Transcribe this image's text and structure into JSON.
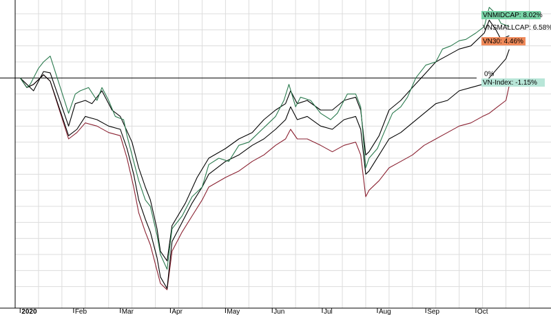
{
  "chart_data": {
    "type": "line",
    "title": "",
    "xlabel": "",
    "ylabel": "",
    "x_ticks": [
      {
        "label": "2020",
        "date": "2020-01-02",
        "bold": true
      },
      {
        "label": "Feb",
        "date": "2020-02-03"
      },
      {
        "label": "Mar",
        "date": "2020-03-02"
      },
      {
        "label": "Apr",
        "date": "2020-04-01"
      },
      {
        "label": "May",
        "date": "2020-05-04"
      },
      {
        "label": "Jun",
        "date": "2020-06-01"
      },
      {
        "label": "Jul",
        "date": "2020-07-01"
      },
      {
        "label": "Aug",
        "date": "2020-08-03"
      },
      {
        "label": "Sep",
        "date": "2020-09-01"
      },
      {
        "label": "Oct",
        "date": "2020-10-01"
      }
    ],
    "xlim": [
      "2019-12-30",
      "2020-11-15"
    ],
    "ylim": [
      -35,
      11.5
    ],
    "y_unit": "%",
    "grid": true,
    "zero_label": "0%",
    "series": [
      {
        "name": "VNMIDCAP",
        "last_value_label": "8.02%",
        "label_bg": "#78d2a6",
        "color": "#2a7a4e",
        "points": [
          [
            "2020-01-02",
            0
          ],
          [
            "2020-01-06",
            -1.5
          ],
          [
            "2020-01-08",
            -1
          ],
          [
            "2020-01-13",
            1.5
          ],
          [
            "2020-01-16",
            2.5
          ],
          [
            "2020-01-20",
            3.4
          ],
          [
            "2020-01-31",
            -5.5
          ],
          [
            "2020-02-04",
            -2.5
          ],
          [
            "2020-02-07",
            -2
          ],
          [
            "2020-02-12",
            -1.5
          ],
          [
            "2020-02-17",
            -3.5
          ],
          [
            "2020-02-20",
            -1.5
          ],
          [
            "2020-02-24",
            -3.5
          ],
          [
            "2020-02-28",
            -6
          ],
          [
            "2020-03-04",
            -6.5
          ],
          [
            "2020-03-06",
            -9
          ],
          [
            "2020-03-10",
            -13
          ],
          [
            "2020-03-13",
            -16
          ],
          [
            "2020-03-17",
            -19
          ],
          [
            "2020-03-20",
            -20
          ],
          [
            "2020-03-24",
            -24.5
          ],
          [
            "2020-03-26",
            -27.5
          ],
          [
            "2020-03-30",
            -29.8
          ],
          [
            "2020-04-02",
            -23.5
          ],
          [
            "2020-04-08",
            -21.5
          ],
          [
            "2020-04-14",
            -18.5
          ],
          [
            "2020-04-20",
            -17
          ],
          [
            "2020-04-24",
            -13.5
          ],
          [
            "2020-04-30",
            -12.5
          ],
          [
            "2020-05-06",
            -13
          ],
          [
            "2020-05-12",
            -10.5
          ],
          [
            "2020-05-18",
            -10
          ],
          [
            "2020-05-22",
            -9
          ],
          [
            "2020-05-28",
            -7.5
          ],
          [
            "2020-06-03",
            -6
          ],
          [
            "2020-06-08",
            -3.5
          ],
          [
            "2020-06-11",
            -1
          ],
          [
            "2020-06-15",
            -4.5
          ],
          [
            "2020-06-18",
            -3
          ],
          [
            "2020-06-24",
            -3.5
          ],
          [
            "2020-06-30",
            -5.5
          ],
          [
            "2020-07-06",
            -6.5
          ],
          [
            "2020-07-10",
            -5.5
          ],
          [
            "2020-07-16",
            -2.5
          ],
          [
            "2020-07-21",
            -2.5
          ],
          [
            "2020-07-24",
            -4.5
          ],
          [
            "2020-07-27",
            -14
          ],
          [
            "2020-07-29",
            -12.5
          ],
          [
            "2020-08-03",
            -11
          ],
          [
            "2020-08-07",
            -8.5
          ],
          [
            "2020-08-12",
            -5.5
          ],
          [
            "2020-08-17",
            -4.5
          ],
          [
            "2020-08-21",
            -3
          ],
          [
            "2020-08-26",
            0
          ],
          [
            "2020-09-01",
            2
          ],
          [
            "2020-09-07",
            2.5
          ],
          [
            "2020-09-11",
            4.5
          ],
          [
            "2020-09-16",
            5
          ],
          [
            "2020-09-21",
            5.8
          ],
          [
            "2020-09-25",
            6
          ],
          [
            "2020-10-01",
            7
          ],
          [
            "2020-10-06",
            8
          ],
          [
            "2020-10-09",
            11
          ],
          [
            "2020-10-13",
            10
          ],
          [
            "2020-10-16",
            8.5
          ],
          [
            "2020-10-21",
            8.02
          ]
        ]
      },
      {
        "name": "VNSMALLCAP",
        "last_value_label": "6.58%",
        "label_bg": "",
        "color": "#000000",
        "points": [
          [
            "2020-01-02",
            0
          ],
          [
            "2020-01-06",
            -1
          ],
          [
            "2020-01-10",
            -2
          ],
          [
            "2020-01-16",
            1
          ],
          [
            "2020-01-20",
            0.8
          ],
          [
            "2020-01-31",
            -7.5
          ],
          [
            "2020-02-04",
            -4
          ],
          [
            "2020-02-10",
            -3.5
          ],
          [
            "2020-02-14",
            -4
          ],
          [
            "2020-02-20",
            -2
          ],
          [
            "2020-02-26",
            -5
          ],
          [
            "2020-03-02",
            -6
          ],
          [
            "2020-03-09",
            -10
          ],
          [
            "2020-03-13",
            -14
          ],
          [
            "2020-03-17",
            -17
          ],
          [
            "2020-03-20",
            -19
          ],
          [
            "2020-03-24",
            -23.5
          ],
          [
            "2020-03-26",
            -27
          ],
          [
            "2020-03-30",
            -28.5
          ],
          [
            "2020-04-02",
            -23
          ],
          [
            "2020-04-10",
            -19.5
          ],
          [
            "2020-04-17",
            -15.5
          ],
          [
            "2020-04-24",
            -12.5
          ],
          [
            "2020-05-04",
            -11
          ],
          [
            "2020-05-12",
            -9.5
          ],
          [
            "2020-05-20",
            -8.5
          ],
          [
            "2020-05-27",
            -6.5
          ],
          [
            "2020-06-03",
            -5
          ],
          [
            "2020-06-09",
            -4
          ],
          [
            "2020-06-12",
            -2
          ],
          [
            "2020-06-16",
            -4
          ],
          [
            "2020-06-22",
            -3.5
          ],
          [
            "2020-06-30",
            -5
          ],
          [
            "2020-07-07",
            -5
          ],
          [
            "2020-07-14",
            -3.5
          ],
          [
            "2020-07-21",
            -3
          ],
          [
            "2020-07-24",
            -5
          ],
          [
            "2020-07-27",
            -12
          ],
          [
            "2020-07-29",
            -11.5
          ],
          [
            "2020-08-04",
            -9
          ],
          [
            "2020-08-10",
            -5
          ],
          [
            "2020-08-17",
            -3.5
          ],
          [
            "2020-08-24",
            -1.5
          ],
          [
            "2020-08-31",
            0.5
          ],
          [
            "2020-09-07",
            2.5
          ],
          [
            "2020-09-14",
            3.5
          ],
          [
            "2020-09-21",
            4.5
          ],
          [
            "2020-09-28",
            5
          ],
          [
            "2020-10-06",
            7
          ],
          [
            "2020-10-09",
            9
          ],
          [
            "2020-10-13",
            7.5
          ],
          [
            "2020-10-16",
            6
          ],
          [
            "2020-10-21",
            6.58
          ]
        ]
      },
      {
        "name": "VN30",
        "last_value_label": "4.46%",
        "label_bg": "#f08a5a",
        "color": "#000000",
        "points": [
          [
            "2020-01-02",
            0
          ],
          [
            "2020-01-06",
            -1.5
          ],
          [
            "2020-01-10",
            -1
          ],
          [
            "2020-01-16",
            0.5
          ],
          [
            "2020-01-20",
            -0.5
          ],
          [
            "2020-01-31",
            -9
          ],
          [
            "2020-02-05",
            -8
          ],
          [
            "2020-02-10",
            -6
          ],
          [
            "2020-02-17",
            -6.5
          ],
          [
            "2020-02-24",
            -7.5
          ],
          [
            "2020-03-02",
            -8
          ],
          [
            "2020-03-06",
            -11
          ],
          [
            "2020-03-10",
            -15
          ],
          [
            "2020-03-13",
            -19
          ],
          [
            "2020-03-17",
            -22
          ],
          [
            "2020-03-20",
            -24
          ],
          [
            "2020-03-24",
            -28
          ],
          [
            "2020-03-26",
            -31
          ],
          [
            "2020-03-30",
            -32.8
          ],
          [
            "2020-04-02",
            -25.5
          ],
          [
            "2020-04-08",
            -22.5
          ],
          [
            "2020-04-14",
            -19.5
          ],
          [
            "2020-04-20",
            -17
          ],
          [
            "2020-04-24",
            -15
          ],
          [
            "2020-05-04",
            -13
          ],
          [
            "2020-05-12",
            -12
          ],
          [
            "2020-05-20",
            -10.5
          ],
          [
            "2020-05-27",
            -9.5
          ],
          [
            "2020-06-03",
            -8
          ],
          [
            "2020-06-09",
            -6.5
          ],
          [
            "2020-06-12",
            -4.5
          ],
          [
            "2020-06-16",
            -6.5
          ],
          [
            "2020-06-22",
            -6
          ],
          [
            "2020-06-30",
            -7.5
          ],
          [
            "2020-07-07",
            -8
          ],
          [
            "2020-07-14",
            -6.5
          ],
          [
            "2020-07-21",
            -6
          ],
          [
            "2020-07-24",
            -8
          ],
          [
            "2020-07-27",
            -15
          ],
          [
            "2020-07-29",
            -14.5
          ],
          [
            "2020-08-04",
            -12
          ],
          [
            "2020-08-10",
            -9.5
          ],
          [
            "2020-08-17",
            -8.5
          ],
          [
            "2020-08-24",
            -7
          ],
          [
            "2020-08-31",
            -5.5
          ],
          [
            "2020-09-07",
            -4
          ],
          [
            "2020-09-14",
            -3.5
          ],
          [
            "2020-09-21",
            -2
          ],
          [
            "2020-09-28",
            -1.5
          ],
          [
            "2020-10-05",
            -1
          ],
          [
            "2020-10-09",
            0
          ],
          [
            "2020-10-14",
            1.5
          ],
          [
            "2020-10-19",
            3
          ],
          [
            "2020-10-21",
            4.46
          ]
        ]
      },
      {
        "name": "VN-Index",
        "last_value_label": "-1.15%",
        "label_bg": "#b8e6d8",
        "color": "#8a2030",
        "points": [
          [
            "2020-01-02",
            0
          ],
          [
            "2020-01-06",
            -1.5
          ],
          [
            "2020-01-10",
            -1
          ],
          [
            "2020-01-16",
            0.5
          ],
          [
            "2020-01-20",
            -0.5
          ],
          [
            "2020-01-31",
            -9.5
          ],
          [
            "2020-02-05",
            -8.5
          ],
          [
            "2020-02-10",
            -7
          ],
          [
            "2020-02-17",
            -7.5
          ],
          [
            "2020-02-24",
            -8.5
          ],
          [
            "2020-03-02",
            -9
          ],
          [
            "2020-03-06",
            -12.5
          ],
          [
            "2020-03-10",
            -17
          ],
          [
            "2020-03-13",
            -21
          ],
          [
            "2020-03-17",
            -24
          ],
          [
            "2020-03-20",
            -26
          ],
          [
            "2020-03-24",
            -30
          ],
          [
            "2020-03-26",
            -32
          ],
          [
            "2020-03-30",
            -33
          ],
          [
            "2020-04-02",
            -27
          ],
          [
            "2020-04-08",
            -24
          ],
          [
            "2020-04-14",
            -21.5
          ],
          [
            "2020-04-20",
            -19
          ],
          [
            "2020-04-24",
            -17
          ],
          [
            "2020-05-04",
            -15.5
          ],
          [
            "2020-05-12",
            -14.5
          ],
          [
            "2020-05-20",
            -13
          ],
          [
            "2020-05-27",
            -12
          ],
          [
            "2020-06-03",
            -10.5
          ],
          [
            "2020-06-09",
            -9.5
          ],
          [
            "2020-06-12",
            -8
          ],
          [
            "2020-06-16",
            -9.5
          ],
          [
            "2020-06-22",
            -9.5
          ],
          [
            "2020-06-30",
            -10.5
          ],
          [
            "2020-07-07",
            -11.5
          ],
          [
            "2020-07-14",
            -10.5
          ],
          [
            "2020-07-21",
            -10
          ],
          [
            "2020-07-24",
            -12
          ],
          [
            "2020-07-27",
            -18.5
          ],
          [
            "2020-07-29",
            -17.5
          ],
          [
            "2020-08-04",
            -16
          ],
          [
            "2020-08-10",
            -14
          ],
          [
            "2020-08-17",
            -13
          ],
          [
            "2020-08-24",
            -12
          ],
          [
            "2020-08-31",
            -10.5
          ],
          [
            "2020-09-07",
            -9.5
          ],
          [
            "2020-09-14",
            -8.5
          ],
          [
            "2020-09-21",
            -7.5
          ],
          [
            "2020-09-28",
            -7
          ],
          [
            "2020-10-05",
            -6
          ],
          [
            "2020-10-09",
            -5.5
          ],
          [
            "2020-10-14",
            -4.5
          ],
          [
            "2020-10-19",
            -3.5
          ],
          [
            "2020-10-21",
            -1.15
          ]
        ]
      }
    ]
  }
}
